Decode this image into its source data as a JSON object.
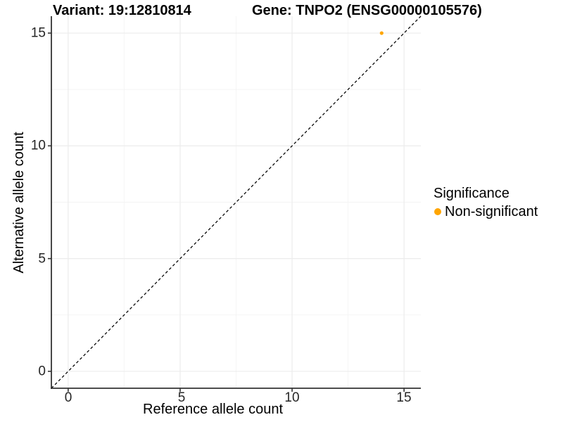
{
  "chart_data": {
    "type": "scatter",
    "title_left": "Variant: 19:12810814",
    "title_right": "Gene: TNPO2 (ENSG00000105576)",
    "xlabel": "Reference allele count",
    "ylabel": "Alternative allele count",
    "xlim": [
      -0.75,
      15.75
    ],
    "ylim": [
      -0.75,
      15.75
    ],
    "x_ticks": [
      "0",
      "5",
      "10",
      "15"
    ],
    "y_ticks": [
      "0",
      "5",
      "10",
      "15"
    ],
    "x_minor_ticks": [
      2.5,
      7.5,
      12.5
    ],
    "y_minor_ticks": [
      2.5,
      7.5,
      12.5
    ],
    "grid": "major and minor gridlines, light gray on white panel",
    "identity_line": {
      "slope": 1,
      "intercept": 0,
      "style": "dashed",
      "color": "#000000"
    },
    "series": [
      {
        "name": "Non-significant",
        "color": "#FFA500",
        "point_radius": 2.6,
        "points": [
          {
            "x": 14,
            "y": 15
          }
        ]
      }
    ],
    "legend": {
      "title": "Significance",
      "position": "right",
      "items": [
        {
          "label": "Non-significant",
          "color": "#FFA500"
        }
      ]
    },
    "style": {
      "axis_line_color": "#333333",
      "grid_major_color": "#ececec",
      "grid_minor_color": "#f4f4f4",
      "tick_label_color": "#262626"
    }
  }
}
